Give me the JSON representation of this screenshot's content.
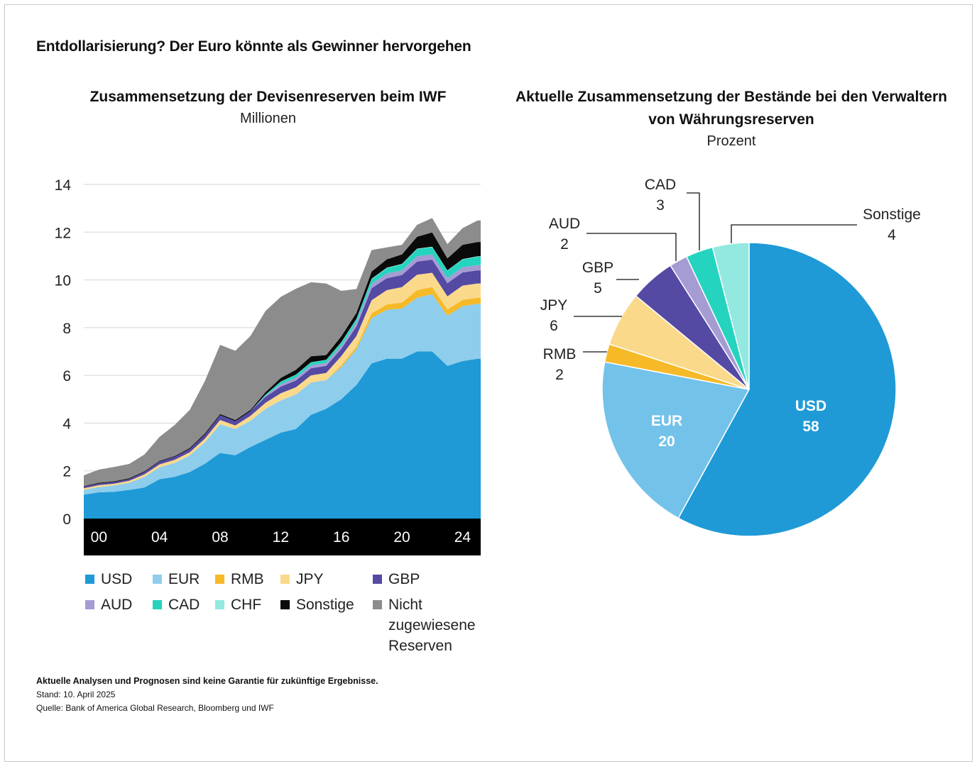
{
  "title": "Entdollarisierung? Der Euro könnte als Gewinner hervorgehen",
  "chart_data": [
    {
      "type": "area",
      "stacked": true,
      "title": "Zusammensetzung der Devisenreserven beim IWF",
      "subtitle": "Millionen",
      "ylim": [
        0,
        14
      ],
      "yticks": [
        "0",
        "2",
        "4",
        "6",
        "8",
        "10",
        "12",
        "14"
      ],
      "xticks": [
        "00",
        "04",
        "08",
        "12",
        "16",
        "20",
        "24"
      ],
      "grid": true,
      "legend_position": "bottom",
      "x": [
        1999,
        2000,
        2001,
        2002,
        2003,
        2004,
        2005,
        2006,
        2007,
        2008,
        2009,
        2010,
        2011,
        2012,
        2013,
        2014,
        2015,
        2016,
        2017,
        2018,
        2019,
        2020,
        2021,
        2022,
        2023,
        2024,
        2025
      ],
      "series": [
        {
          "name": "USD",
          "color": "#1f9ad6",
          "values": [
            1.0,
            1.1,
            1.12,
            1.2,
            1.3,
            1.65,
            1.75,
            1.95,
            2.3,
            2.75,
            2.65,
            3.0,
            3.3,
            3.6,
            3.75,
            4.35,
            4.6,
            5.0,
            5.6,
            6.5,
            6.7,
            6.7,
            7.0,
            7.0,
            6.4,
            6.6,
            6.7
          ]
        },
        {
          "name": "EUR",
          "color": "#8fcdec",
          "values": [
            0.2,
            0.22,
            0.27,
            0.3,
            0.45,
            0.5,
            0.58,
            0.7,
            0.9,
            1.2,
            1.1,
            1.1,
            1.3,
            1.35,
            1.45,
            1.35,
            1.2,
            1.35,
            1.5,
            1.9,
            2.05,
            2.1,
            2.25,
            2.4,
            2.1,
            2.3,
            2.3
          ]
        },
        {
          "name": "RMB",
          "color": "#f6b928",
          "values": [
            0,
            0,
            0,
            0,
            0,
            0,
            0,
            0,
            0,
            0,
            0,
            0,
            0,
            0,
            0,
            0,
            0,
            0.08,
            0.1,
            0.2,
            0.22,
            0.25,
            0.32,
            0.3,
            0.26,
            0.26,
            0.25
          ]
        },
        {
          "name": "JPY",
          "color": "#fbd98b",
          "values": [
            0.07,
            0.08,
            0.07,
            0.08,
            0.1,
            0.12,
            0.13,
            0.13,
            0.15,
            0.18,
            0.15,
            0.2,
            0.25,
            0.3,
            0.3,
            0.3,
            0.3,
            0.38,
            0.45,
            0.55,
            0.6,
            0.65,
            0.65,
            0.6,
            0.55,
            0.6,
            0.6
          ]
        },
        {
          "name": "GBP",
          "color": "#5449a3",
          "values": [
            0.07,
            0.07,
            0.07,
            0.08,
            0.1,
            0.12,
            0.13,
            0.14,
            0.17,
            0.2,
            0.18,
            0.2,
            0.25,
            0.28,
            0.28,
            0.3,
            0.3,
            0.3,
            0.4,
            0.5,
            0.5,
            0.5,
            0.55,
            0.55,
            0.55,
            0.55,
            0.55
          ]
        },
        {
          "name": "AUD",
          "color": "#a59cd4",
          "values": [
            0,
            0,
            0,
            0,
            0,
            0,
            0,
            0,
            0,
            0,
            0,
            0,
            0.05,
            0.1,
            0.12,
            0.12,
            0.12,
            0.13,
            0.15,
            0.18,
            0.2,
            0.2,
            0.22,
            0.22,
            0.22,
            0.22,
            0.22
          ]
        },
        {
          "name": "CAD",
          "color": "#25d4be",
          "values": [
            0,
            0,
            0,
            0,
            0,
            0,
            0,
            0,
            0,
            0,
            0,
            0,
            0.05,
            0.1,
            0.12,
            0.12,
            0.12,
            0.13,
            0.15,
            0.2,
            0.22,
            0.25,
            0.3,
            0.3,
            0.3,
            0.32,
            0.35
          ]
        },
        {
          "name": "CHF",
          "color": "#93e9e0",
          "values": [
            0,
            0,
            0,
            0,
            0,
            0,
            0,
            0,
            0,
            0,
            0,
            0,
            0,
            0.01,
            0.01,
            0.01,
            0.01,
            0.02,
            0.02,
            0.02,
            0.02,
            0.02,
            0.02,
            0.02,
            0.02,
            0.02,
            0.02
          ]
        },
        {
          "name": "Sonstige",
          "color": "#0a0a0a",
          "values": [
            0.02,
            0.03,
            0.03,
            0.03,
            0.03,
            0.03,
            0.03,
            0.04,
            0.05,
            0.05,
            0.05,
            0.05,
            0.1,
            0.15,
            0.2,
            0.25,
            0.2,
            0.25,
            0.25,
            0.3,
            0.35,
            0.4,
            0.5,
            0.6,
            0.5,
            0.6,
            0.6
          ]
        },
        {
          "name": "Nicht zugewiesene Reserven",
          "color": "#8c8c8c",
          "values": [
            0.45,
            0.55,
            0.6,
            0.6,
            0.7,
            1.0,
            1.3,
            1.6,
            2.2,
            2.9,
            2.9,
            3.1,
            3.4,
            3.4,
            3.4,
            3.1,
            3.0,
            1.9,
            1.0,
            0.9,
            0.5,
            0.4,
            0.5,
            0.6,
            0.6,
            0.7,
            0.9
          ]
        }
      ]
    },
    {
      "type": "pie",
      "title": "Aktuelle Zusammensetzung der Bestände bei den Verwaltern von Währungsreserven",
      "subtitle": "Prozent",
      "slices": [
        {
          "label": "USD",
          "value": 58,
          "color": "#1f9ad6"
        },
        {
          "label": "EUR",
          "value": 20,
          "color": "#73c2ea"
        },
        {
          "label": "RMB",
          "value": 2,
          "color": "#f6b928"
        },
        {
          "label": "JPY",
          "value": 6,
          "color": "#fbd98b"
        },
        {
          "label": "GBP",
          "value": 5,
          "color": "#5449a3"
        },
        {
          "label": "AUD",
          "value": 2,
          "color": "#a59cd4"
        },
        {
          "label": "CAD",
          "value": 3,
          "color": "#25d4be"
        },
        {
          "label": "Sonstige",
          "value": 4,
          "color": "#93e9e0"
        }
      ]
    }
  ],
  "notes": {
    "disclaimer": "Aktuelle Analysen und Prognosen sind keine Garantie für zukünftige Ergebnisse.",
    "date": "Stand: 10. April 2025",
    "source": "Quelle: Bank of America Global Research, Bloomberg und IWF"
  }
}
